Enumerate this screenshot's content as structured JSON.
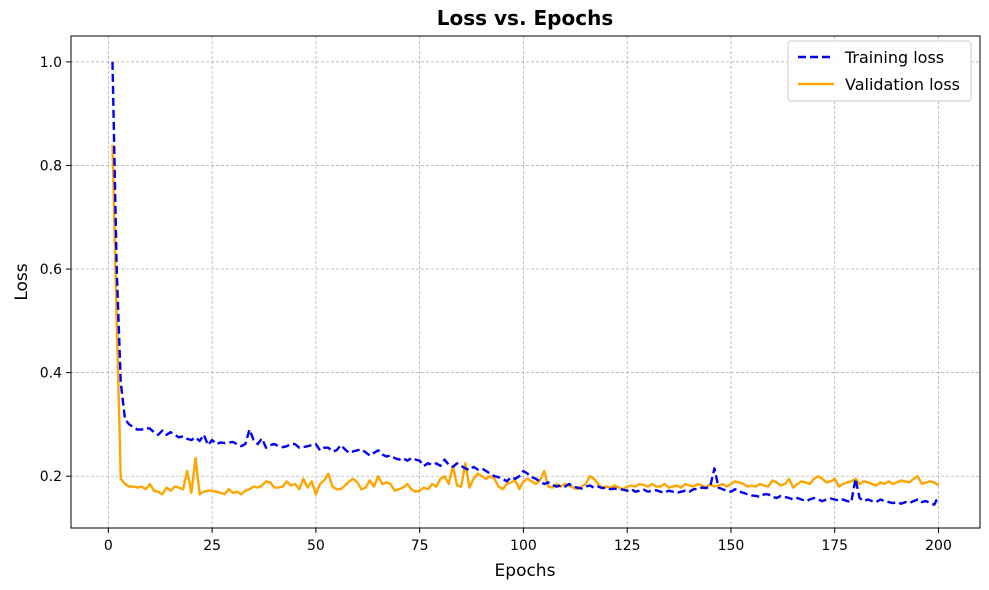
{
  "chart_data": {
    "type": "line",
    "title": "Loss vs. Epochs",
    "xlabel": "Epochs",
    "ylabel": "Loss",
    "xlim": [
      -9,
      210
    ],
    "ylim": [
      0.1,
      1.05
    ],
    "xticks": [
      0,
      25,
      50,
      75,
      100,
      125,
      150,
      175,
      200
    ],
    "yticks": [
      0.2,
      0.4,
      0.6,
      0.8,
      1.0
    ],
    "xtick_labels": [
      "0",
      "25",
      "50",
      "75",
      "100",
      "125",
      "150",
      "175",
      "200"
    ],
    "ytick_labels": [
      "0.2",
      "0.4",
      "0.6",
      "0.8",
      "1.0"
    ],
    "grid": true,
    "legend_position": "top-right",
    "series": [
      {
        "name": "Training loss",
        "color": "#0000ee",
        "style": "dashed",
        "x": [
          1,
          2,
          3,
          4,
          5,
          6,
          7,
          8,
          9,
          10,
          11,
          12,
          13,
          14,
          15,
          16,
          17,
          18,
          19,
          20,
          21,
          22,
          23,
          24,
          25,
          26,
          27,
          28,
          29,
          30,
          31,
          32,
          33,
          34,
          35,
          36,
          37,
          38,
          39,
          40,
          41,
          42,
          43,
          44,
          45,
          46,
          47,
          48,
          49,
          50,
          51,
          52,
          53,
          54,
          55,
          56,
          57,
          58,
          59,
          60,
          61,
          62,
          63,
          64,
          65,
          66,
          67,
          68,
          69,
          70,
          71,
          72,
          73,
          74,
          75,
          76,
          77,
          78,
          79,
          80,
          81,
          82,
          83,
          84,
          85,
          86,
          87,
          88,
          89,
          90,
          91,
          92,
          93,
          94,
          95,
          96,
          97,
          98,
          99,
          100,
          101,
          102,
          103,
          104,
          105,
          106,
          107,
          108,
          109,
          110,
          111,
          112,
          113,
          114,
          115,
          116,
          117,
          118,
          119,
          120,
          121,
          122,
          123,
          124,
          125,
          126,
          127,
          128,
          129,
          130,
          131,
          132,
          133,
          134,
          135,
          136,
          137,
          138,
          139,
          140,
          141,
          142,
          143,
          144,
          145,
          146,
          147,
          148,
          149,
          150,
          151,
          152,
          153,
          154,
          155,
          156,
          157,
          158,
          159,
          160,
          161,
          162,
          163,
          164,
          165,
          166,
          167,
          168,
          169,
          170,
          171,
          172,
          173,
          174,
          175,
          176,
          177,
          178,
          179,
          180,
          181,
          182,
          183,
          184,
          185,
          186,
          187,
          188,
          189,
          190,
          191,
          192,
          193,
          194,
          195,
          196,
          197,
          198,
          199,
          200
        ],
        "y": [
          1.0,
          0.6,
          0.38,
          0.31,
          0.3,
          0.295,
          0.29,
          0.29,
          0.293,
          0.292,
          0.285,
          0.28,
          0.288,
          0.28,
          0.285,
          0.28,
          0.275,
          0.277,
          0.272,
          0.27,
          0.275,
          0.268,
          0.28,
          0.26,
          0.27,
          0.262,
          0.265,
          0.264,
          0.265,
          0.266,
          0.262,
          0.258,
          0.262,
          0.29,
          0.27,
          0.262,
          0.273,
          0.255,
          0.26,
          0.262,
          0.258,
          0.256,
          0.258,
          0.262,
          0.262,
          0.255,
          0.256,
          0.258,
          0.26,
          0.262,
          0.25,
          0.255,
          0.255,
          0.248,
          0.25,
          0.26,
          0.252,
          0.245,
          0.248,
          0.25,
          0.252,
          0.246,
          0.24,
          0.245,
          0.25,
          0.242,
          0.238,
          0.24,
          0.235,
          0.232,
          0.235,
          0.23,
          0.235,
          0.232,
          0.23,
          0.22,
          0.225,
          0.222,
          0.225,
          0.22,
          0.232,
          0.222,
          0.218,
          0.225,
          0.22,
          0.215,
          0.212,
          0.218,
          0.213,
          0.215,
          0.21,
          0.205,
          0.2,
          0.198,
          0.195,
          0.19,
          0.198,
          0.195,
          0.2,
          0.21,
          0.205,
          0.198,
          0.195,
          0.19,
          0.185,
          0.188,
          0.183,
          0.18,
          0.182,
          0.18,
          0.185,
          0.18,
          0.178,
          0.176,
          0.18,
          0.182,
          0.178,
          0.18,
          0.177,
          0.178,
          0.175,
          0.176,
          0.175,
          0.174,
          0.172,
          0.175,
          0.17,
          0.172,
          0.174,
          0.17,
          0.172,
          0.173,
          0.17,
          0.168,
          0.172,
          0.17,
          0.168,
          0.17,
          0.172,
          0.17,
          0.175,
          0.175,
          0.178,
          0.177,
          0.18,
          0.215,
          0.178,
          0.175,
          0.172,
          0.17,
          0.175,
          0.17,
          0.168,
          0.165,
          0.163,
          0.162,
          0.16,
          0.165,
          0.165,
          0.16,
          0.158,
          0.162,
          0.16,
          0.158,
          0.155,
          0.158,
          0.155,
          0.152,
          0.155,
          0.158,
          0.155,
          0.152,
          0.155,
          0.157,
          0.155,
          0.153,
          0.155,
          0.152,
          0.15,
          0.195,
          0.158,
          0.152,
          0.155,
          0.152,
          0.15,
          0.155,
          0.152,
          0.15,
          0.148,
          0.15,
          0.147,
          0.15,
          0.148,
          0.152,
          0.155,
          0.15,
          0.152,
          0.148,
          0.145,
          0.162
        ],
        "label_key": "legend.training"
      },
      {
        "name": "Validation loss",
        "color": "#ffa500",
        "style": "solid",
        "x": [
          1,
          2,
          3,
          4,
          5,
          6,
          7,
          8,
          9,
          10,
          11,
          12,
          13,
          14,
          15,
          16,
          17,
          18,
          19,
          20,
          21,
          22,
          23,
          24,
          25,
          26,
          27,
          28,
          29,
          30,
          31,
          32,
          33,
          34,
          35,
          36,
          37,
          38,
          39,
          40,
          41,
          42,
          43,
          44,
          45,
          46,
          47,
          48,
          49,
          50,
          51,
          52,
          53,
          54,
          55,
          56,
          57,
          58,
          59,
          60,
          61,
          62,
          63,
          64,
          65,
          66,
          67,
          68,
          69,
          70,
          71,
          72,
          73,
          74,
          75,
          76,
          77,
          78,
          79,
          80,
          81,
          82,
          83,
          84,
          85,
          86,
          87,
          88,
          89,
          90,
          91,
          92,
          93,
          94,
          95,
          96,
          97,
          98,
          99,
          100,
          101,
          102,
          103,
          104,
          105,
          106,
          107,
          108,
          109,
          110,
          111,
          112,
          113,
          114,
          115,
          116,
          117,
          118,
          119,
          120,
          121,
          122,
          123,
          124,
          125,
          126,
          127,
          128,
          129,
          130,
          131,
          132,
          133,
          134,
          135,
          136,
          137,
          138,
          139,
          140,
          141,
          142,
          143,
          144,
          145,
          146,
          147,
          148,
          149,
          150,
          151,
          152,
          153,
          154,
          155,
          156,
          157,
          158,
          159,
          160,
          161,
          162,
          163,
          164,
          165,
          166,
          167,
          168,
          169,
          170,
          171,
          172,
          173,
          174,
          175,
          176,
          177,
          178,
          179,
          180,
          181,
          182,
          183,
          184,
          185,
          186,
          187,
          188,
          189,
          190,
          191,
          192,
          193,
          194,
          195,
          196,
          197,
          198,
          199,
          200
        ],
        "y": [
          0.84,
          0.5,
          0.195,
          0.185,
          0.18,
          0.18,
          0.178,
          0.18,
          0.175,
          0.185,
          0.172,
          0.17,
          0.165,
          0.178,
          0.172,
          0.18,
          0.178,
          0.175,
          0.21,
          0.168,
          0.235,
          0.165,
          0.17,
          0.172,
          0.172,
          0.17,
          0.168,
          0.165,
          0.175,
          0.168,
          0.17,
          0.165,
          0.172,
          0.175,
          0.18,
          0.178,
          0.182,
          0.19,
          0.188,
          0.178,
          0.178,
          0.18,
          0.19,
          0.182,
          0.185,
          0.175,
          0.195,
          0.178,
          0.19,
          0.165,
          0.185,
          0.192,
          0.205,
          0.18,
          0.175,
          0.175,
          0.182,
          0.19,
          0.195,
          0.188,
          0.175,
          0.178,
          0.192,
          0.18,
          0.2,
          0.185,
          0.188,
          0.185,
          0.172,
          0.175,
          0.178,
          0.185,
          0.175,
          0.17,
          0.172,
          0.178,
          0.175,
          0.185,
          0.18,
          0.195,
          0.2,
          0.185,
          0.22,
          0.182,
          0.18,
          0.225,
          0.178,
          0.195,
          0.205,
          0.2,
          0.195,
          0.2,
          0.195,
          0.18,
          0.175,
          0.185,
          0.188,
          0.192,
          0.175,
          0.19,
          0.195,
          0.19,
          0.185,
          0.192,
          0.21,
          0.18,
          0.178,
          0.185,
          0.18,
          0.185,
          0.182,
          0.178,
          0.175,
          0.18,
          0.185,
          0.2,
          0.195,
          0.185,
          0.178,
          0.18,
          0.178,
          0.182,
          0.178,
          0.175,
          0.18,
          0.182,
          0.18,
          0.185,
          0.183,
          0.18,
          0.185,
          0.18,
          0.18,
          0.185,
          0.178,
          0.18,
          0.182,
          0.178,
          0.185,
          0.182,
          0.18,
          0.185,
          0.182,
          0.178,
          0.185,
          0.18,
          0.182,
          0.185,
          0.18,
          0.185,
          0.19,
          0.188,
          0.185,
          0.18,
          0.182,
          0.18,
          0.185,
          0.182,
          0.18,
          0.192,
          0.188,
          0.182,
          0.185,
          0.195,
          0.178,
          0.185,
          0.19,
          0.188,
          0.185,
          0.195,
          0.2,
          0.195,
          0.188,
          0.19,
          0.195,
          0.18,
          0.185,
          0.188,
          0.19,
          0.195,
          0.185,
          0.19,
          0.188,
          0.185,
          0.182,
          0.188,
          0.185,
          0.19,
          0.185,
          0.188,
          0.192,
          0.19,
          0.188,
          0.195,
          0.2,
          0.185,
          0.188,
          0.19,
          0.188,
          0.182
        ],
        "label_key": "legend.validation"
      }
    ]
  },
  "legend": {
    "training": "Training loss",
    "validation": "Validation loss"
  }
}
